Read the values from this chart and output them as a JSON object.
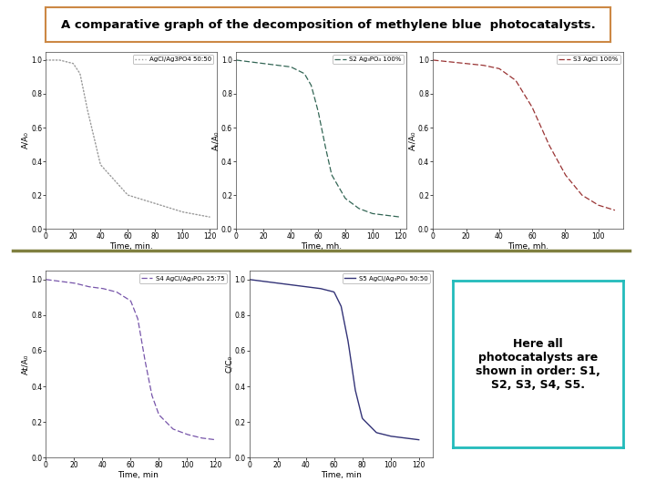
{
  "title": "A comparative graph of the decomposition of methylene blue  photocatalysts.",
  "title_fontsize": 9.5,
  "background": "#ffffff",
  "separator_color": "#808040",
  "text_box": {
    "text": "Here all\nphotocatalysts are\nshown in order: S1,\nS2, S3, S4, S5.",
    "fontsize": 9,
    "border_color": "#22bbbb",
    "bg_color": "#ffffff"
  },
  "plots": [
    {
      "label": "AgCl/Ag3PO4 50:50",
      "color": "#999999",
      "linestyle": "dotted",
      "ylabel": "A/A₀",
      "xlabel": "Time, min.",
      "xdata": [
        0,
        5,
        10,
        20,
        25,
        30,
        40,
        60,
        80,
        100,
        120
      ],
      "ydata": [
        1.0,
        1.0,
        1.0,
        0.98,
        0.92,
        0.72,
        0.38,
        0.2,
        0.15,
        0.1,
        0.07
      ],
      "xlim": [
        0,
        125
      ],
      "ylim": [
        0.0,
        1.05
      ],
      "yticks": [
        0.0,
        0.2,
        0.4,
        0.6,
        0.8,
        1.0
      ],
      "ytick_labels": [
        "0.0",
        "0.2",
        "0.4",
        "0.6",
        "0.8",
        "1.0"
      ],
      "xticks": [
        0,
        20,
        40,
        60,
        80,
        100,
        120
      ],
      "xtick_labels": [
        "0",
        "20",
        "40",
        "60",
        "80",
        "100",
        "120"
      ]
    },
    {
      "label": "S2 Ag₃PO₄ 100%",
      "color": "#336655",
      "linestyle": "dashed",
      "ylabel": "Aₜ/A₀",
      "xlabel": "Time, mh.",
      "xdata": [
        0,
        10,
        20,
        30,
        40,
        50,
        55,
        60,
        65,
        70,
        80,
        90,
        100,
        120
      ],
      "ydata": [
        1.0,
        0.99,
        0.98,
        0.97,
        0.96,
        0.92,
        0.85,
        0.7,
        0.5,
        0.32,
        0.18,
        0.12,
        0.09,
        0.07
      ],
      "xlim": [
        0,
        125
      ],
      "ylim": [
        0.0,
        1.05
      ],
      "yticks": [
        0.0,
        0.2,
        0.4,
        0.6,
        0.8,
        1.0
      ],
      "ytick_labels": [
        "0.0",
        "0.2",
        "0.4",
        "0.6",
        "0.8",
        "1.0"
      ],
      "xticks": [
        0,
        20,
        40,
        60,
        80,
        100,
        120
      ],
      "xtick_labels": [
        "0",
        "20",
        "40",
        "60",
        "80",
        "100",
        "120"
      ]
    },
    {
      "label": "S3 AgCl 100%",
      "color": "#993333",
      "linestyle": "dashed",
      "ylabel": "Aₜ/A₀",
      "xlabel": "Time, mh.",
      "xdata": [
        0,
        10,
        20,
        30,
        40,
        50,
        60,
        70,
        80,
        90,
        100,
        110
      ],
      "ydata": [
        1.0,
        0.99,
        0.98,
        0.97,
        0.95,
        0.88,
        0.72,
        0.5,
        0.32,
        0.2,
        0.14,
        0.11
      ],
      "xlim": [
        0,
        115
      ],
      "ylim": [
        0.0,
        1.05
      ],
      "yticks": [
        0.0,
        0.2,
        0.4,
        0.6,
        0.8,
        1.0
      ],
      "ytick_labels": [
        "0.0",
        "0.2",
        "0.4",
        "0.6",
        "0.8",
        "1.0"
      ],
      "xticks": [
        0,
        20,
        40,
        60,
        80,
        100
      ],
      "xtick_labels": [
        "0",
        "20",
        "40",
        "60",
        "80",
        "100"
      ]
    },
    {
      "label": "S4 AgCl/Ag₃PO₄ 25:75",
      "color": "#7755aa",
      "linestyle": "dashed",
      "ylabel": "At/A₀",
      "xlabel": "Time, min",
      "xdata": [
        0,
        10,
        20,
        30,
        40,
        50,
        60,
        65,
        70,
        75,
        80,
        90,
        100,
        110,
        120
      ],
      "ydata": [
        1.0,
        0.99,
        0.98,
        0.96,
        0.95,
        0.93,
        0.88,
        0.78,
        0.55,
        0.35,
        0.24,
        0.16,
        0.13,
        0.11,
        0.1
      ],
      "xlim": [
        0,
        130
      ],
      "ylim": [
        0.0,
        1.05
      ],
      "yticks": [
        0.0,
        0.2,
        0.4,
        0.6,
        0.8,
        1.0
      ],
      "ytick_labels": [
        "0.0",
        "0.2",
        "0.4",
        "0.6",
        "0.8",
        "1.0"
      ],
      "xticks": [
        0,
        20,
        40,
        60,
        80,
        100,
        120
      ],
      "xtick_labels": [
        "0",
        "20",
        "40",
        "60",
        "80",
        "100",
        "120"
      ]
    },
    {
      "label": "S5 AgCl/Ag₃PO₄ 50:50",
      "color": "#333377",
      "linestyle": "solid",
      "ylabel": "C/C₀",
      "xlabel": "Time, min",
      "xdata": [
        0,
        10,
        20,
        30,
        40,
        50,
        60,
        65,
        70,
        75,
        80,
        90,
        100,
        110,
        120
      ],
      "ydata": [
        1.0,
        0.99,
        0.98,
        0.97,
        0.96,
        0.95,
        0.93,
        0.85,
        0.65,
        0.38,
        0.22,
        0.14,
        0.12,
        0.11,
        0.1
      ],
      "xlim": [
        0,
        130
      ],
      "ylim": [
        0.0,
        1.05
      ],
      "yticks": [
        0.0,
        0.2,
        0.4,
        0.6,
        0.8,
        1.0
      ],
      "ytick_labels": [
        "0.0",
        "0.2",
        "0.4",
        "0.6",
        "0.8",
        "1.0"
      ],
      "xticks": [
        0,
        20,
        40,
        60,
        80,
        100,
        120
      ],
      "xtick_labels": [
        "0",
        "20",
        "40",
        "60",
        "80",
        "100",
        "120"
      ]
    }
  ]
}
